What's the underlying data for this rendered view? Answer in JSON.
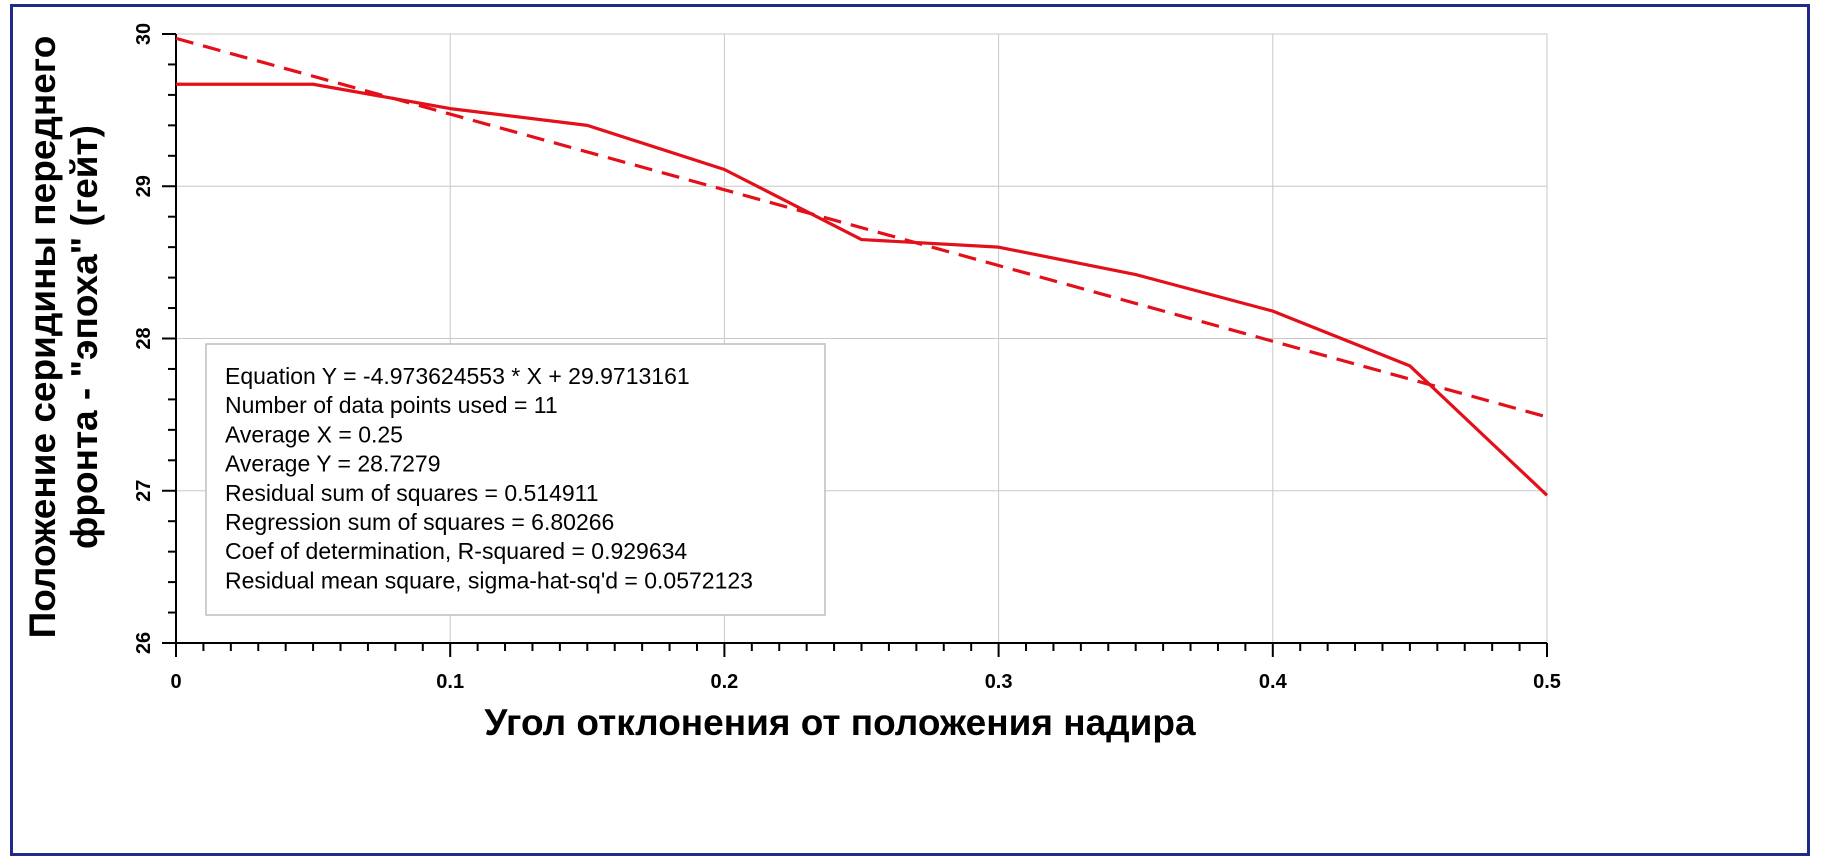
{
  "chart_data": {
    "type": "line",
    "title": "",
    "xlabel": "Угол отклонения от положения надира",
    "ylabel_lines": [
      "Положение серидины переднего",
      "фронта - \"эпоха\" (гейт)"
    ],
    "xlim": [
      0,
      0.5
    ],
    "ylim": [
      26,
      30
    ],
    "grid": true,
    "x_ticks": [
      0,
      0.1,
      0.2,
      0.3,
      0.4,
      0.5
    ],
    "x_tick_labels": [
      "0",
      "0.1",
      "0.2",
      "0.3",
      "0.4",
      "0.5"
    ],
    "y_ticks": [
      26,
      27,
      28,
      29,
      30
    ],
    "y_tick_labels": [
      "26",
      "27",
      "28",
      "29",
      "30"
    ],
    "series": [
      {
        "style": "solid",
        "color": "#e3101a",
        "x": [
          0,
          0.05,
          0.1,
          0.15,
          0.2,
          0.25,
          0.3,
          0.35,
          0.4,
          0.45,
          0.5
        ],
        "y": [
          29.67,
          29.67,
          29.51,
          29.4,
          29.11,
          28.65,
          28.6,
          28.42,
          28.18,
          27.82,
          26.97
        ]
      },
      {
        "style": "dashed",
        "color": "#e3101a",
        "x": [
          0,
          0.5
        ],
        "y": [
          29.9713161,
          27.484504
        ]
      }
    ],
    "annotation_lines": [
      "Equation Y = -4.973624553 * X + 29.9713161",
      "Number of data points used = 11",
      "Average X = 0.25",
      "Average Y = 28.7279",
      "Residual sum of squares = 0.514911",
      "Regression sum of squares = 6.80266",
      "Coef of determination, R-squared = 0.929634",
      "Residual mean square, sigma-hat-sq'd = 0.0572123"
    ],
    "colors": {
      "line": "#e3101a",
      "frame_border": "#1f2a8c",
      "grid": "#c8c8c8"
    }
  }
}
